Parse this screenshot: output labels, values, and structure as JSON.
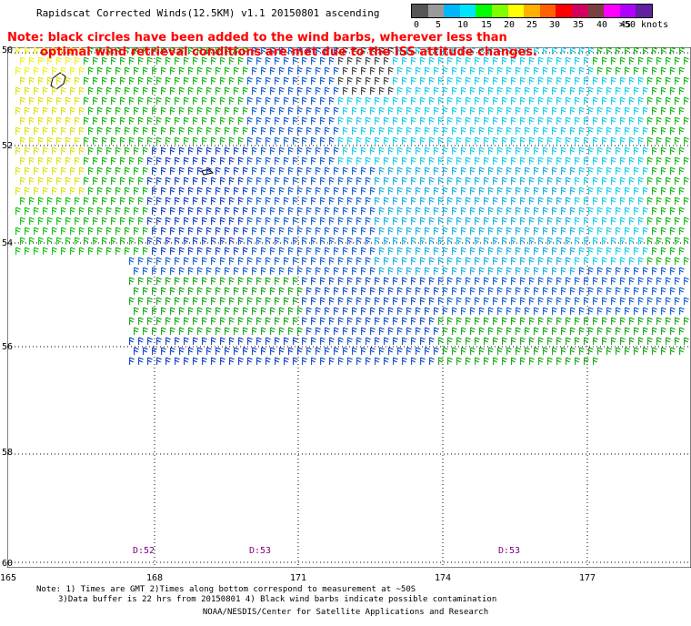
{
  "title": "Rapidscat Corrected Winds(12.5KM) v1.1 20150801 ascending",
  "note_line1": "Note: black circles have been added to the wind barbs, wherever less than",
  "note_line2": "optimal wind retrieval conditions are met due to the ISS attitude changes.",
  "scale": {
    "labels": [
      "0",
      "5",
      "10",
      "15",
      "20",
      "25",
      "30",
      "35",
      "40",
      "45",
      ">50 knots"
    ],
    "colors": [
      "#555555",
      "#9a9a9a",
      "#00b7ff",
      "#00e5ff",
      "#00ff00",
      "#80ff00",
      "#ffff00",
      "#ffb000",
      "#ff6000",
      "#ff0000",
      "#d40060",
      "#7a3f3f",
      "#ff00ff",
      "#b000ff",
      "#6020a0"
    ]
  },
  "axes": {
    "lat_labels": [
      "50",
      "52",
      "54",
      "56",
      "58",
      "60"
    ],
    "lon_labels": [
      "165",
      "168",
      "171",
      "174",
      "177"
    ]
  },
  "time_labels": [
    "D:52",
    "D:53",
    "D:53"
  ],
  "footnote_line1": "Note: 1) Times are GMT 2)Times along bottom correspond to measurement at ~50S",
  "footnote_line2": "3)Data buffer is 22 hrs from 20150801 4) Black wind barbs indicate possible contamination",
  "credit": "NOAA/NESDIS/Center for Satellite Applications and Research"
}
